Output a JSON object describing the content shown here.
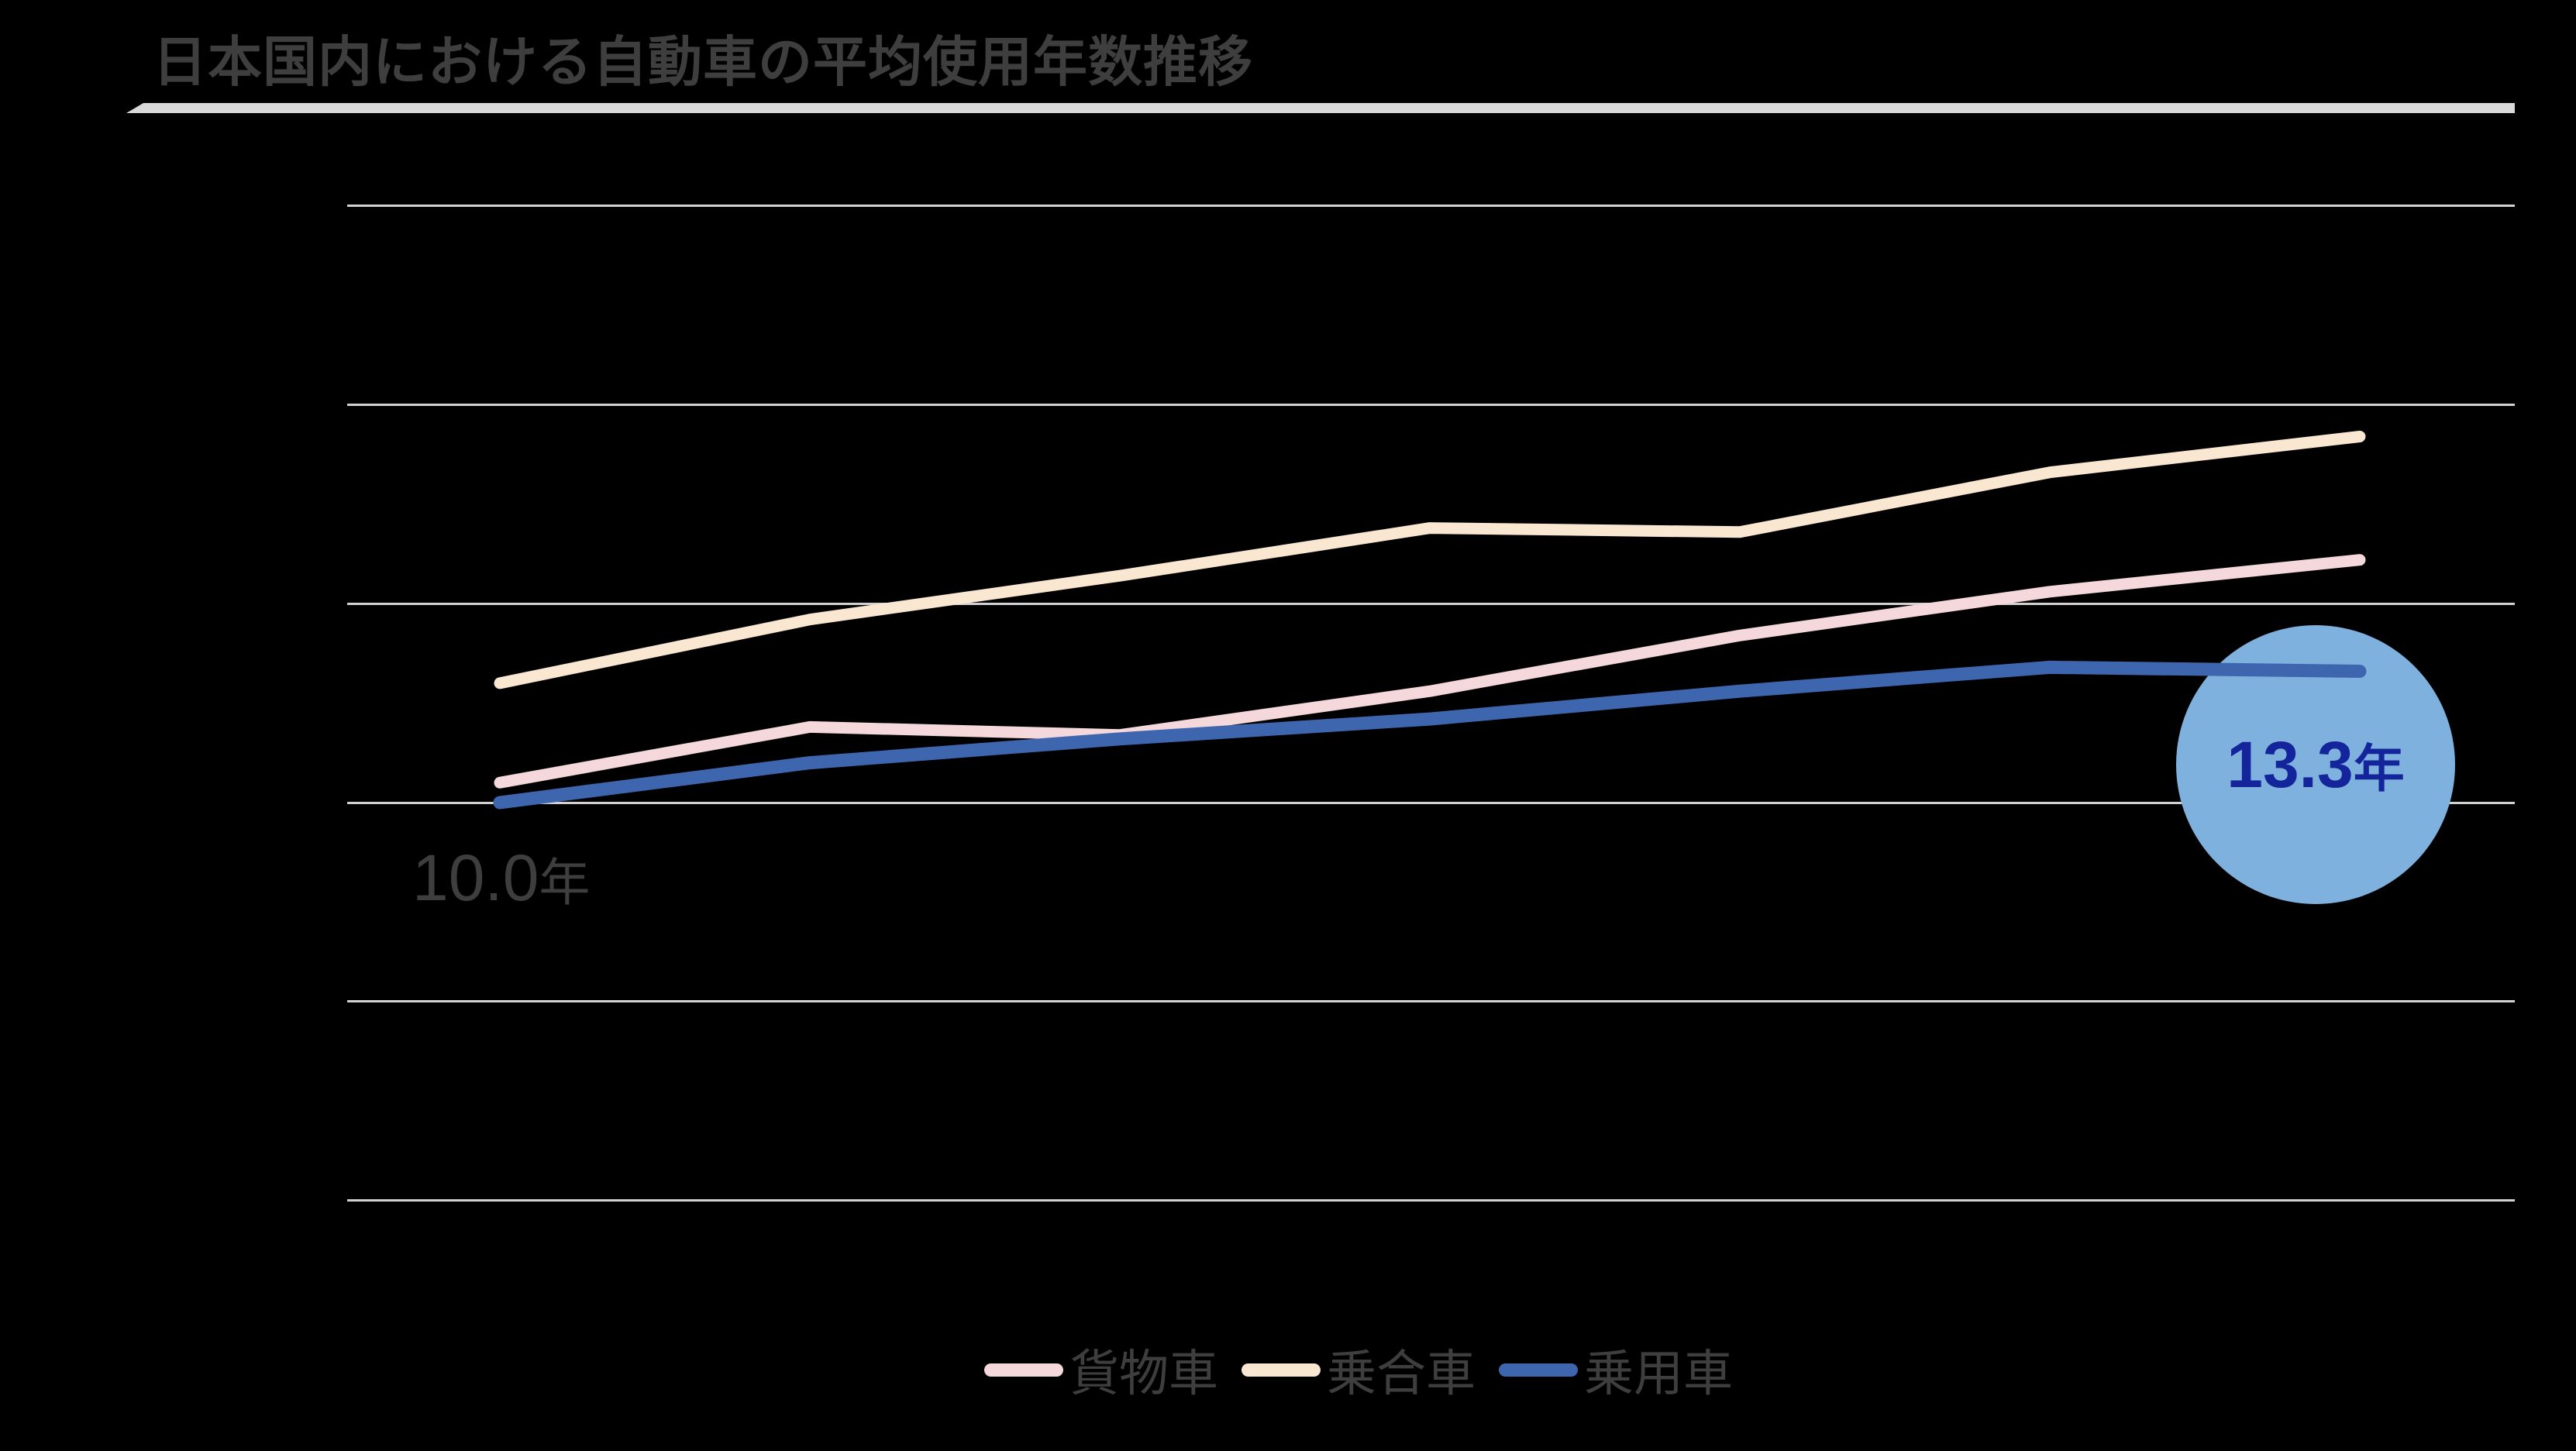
{
  "title": {
    "text": "日本国内における自動車の平均使用年数推移"
  },
  "annotations": {
    "start": {
      "value": "10.0",
      "unit": "年"
    },
    "end": {
      "value": "13.3",
      "unit": "年"
    }
  },
  "colors": {
    "background": "#000000",
    "title_text": "#3E3E3E",
    "gridline": "#D1D1D1",
    "title_underline": "#D9D9D9",
    "highlight_circle_fill": "#7FB1DF",
    "highlight_circle_rim": "#3BD9FB",
    "highlight_text": "#14249A"
  },
  "chart_data": {
    "type": "line",
    "title": "日本国内における自動車の平均使用年数推移",
    "x": [
      1,
      2,
      3,
      4,
      5,
      6,
      7
    ],
    "x_tick_labels_visible": false,
    "y_axis_labels_visible": false,
    "unit": "年",
    "gridlines": {
      "horizontal_count": 6,
      "inferred_values": [
        25,
        20,
        15,
        10,
        5,
        0
      ]
    },
    "legend_position": "bottom",
    "series": [
      {
        "name": "貨物車",
        "color": "#F5D8DC",
        "values": [
          10.5,
          11.9,
          11.7,
          12.8,
          14.2,
          15.3,
          16.1
        ]
      },
      {
        "name": "乗合車",
        "color": "#FAE7D2",
        "values": [
          13.0,
          14.6,
          15.7,
          16.9,
          16.8,
          18.3,
          19.2
        ]
      },
      {
        "name": "乗用車",
        "color": "#3E66AF",
        "values": [
          10.0,
          11.0,
          11.6,
          12.1,
          12.8,
          13.4,
          13.3
        ]
      }
    ],
    "point_annotations": [
      {
        "series": "乗用車",
        "point_index": 0,
        "label": "10.0年"
      },
      {
        "series": "乗用車",
        "point_index": 6,
        "label": "13.3年",
        "style": "circle-highlight"
      }
    ]
  }
}
